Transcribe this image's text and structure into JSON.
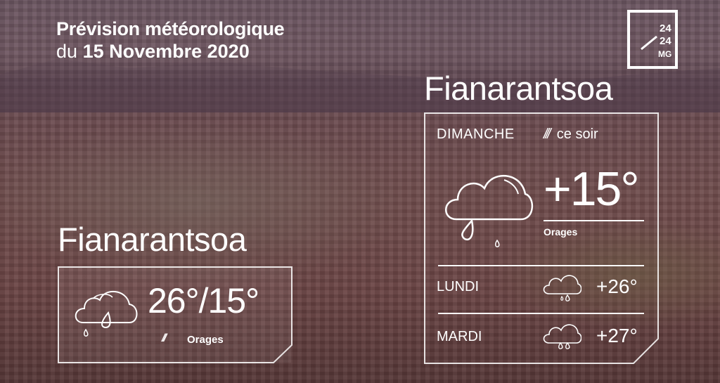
{
  "header": {
    "line1": "Prévision météorologique",
    "line2_prefix": "du",
    "line2_date": "15 Novembre 2020"
  },
  "logo": {
    "text": "24 24 MG",
    "icon": "24-24-mg-logo"
  },
  "today": {
    "city": "Fianarantsoa",
    "temps": "26°/15°",
    "condition": "Orages",
    "icon": "cloud-rain-icon"
  },
  "forecast": {
    "city": "Fianarantsoa",
    "current": {
      "day": "DIMANCHE",
      "period": "ce soir",
      "temp": "+15°",
      "condition": "Orages",
      "icon": "cloud-rain-icon"
    },
    "days": [
      {
        "day": "LUNDI",
        "temp": "+26°",
        "icon": "cloud-rain-icon"
      },
      {
        "day": "MARDI",
        "temp": "+27°",
        "icon": "cloud-rain-icon"
      }
    ]
  },
  "colors": {
    "text": "#ffffff",
    "overlay": "#6a4a52"
  }
}
